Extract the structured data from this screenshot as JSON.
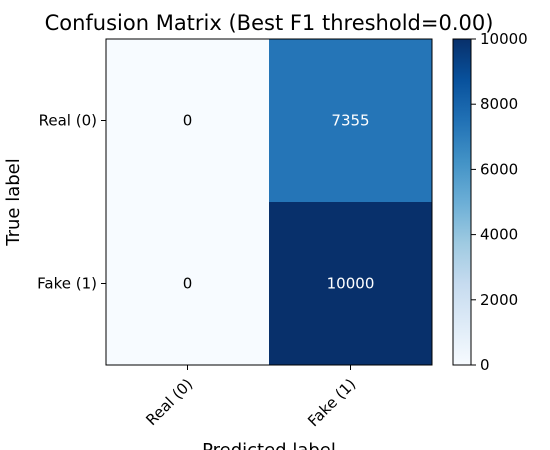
{
  "chart_data": {
    "type": "heatmap",
    "title": "Confusion Matrix (Best F1 threshold=0.00)",
    "xlabel": "Predicted label",
    "ylabel": "True label",
    "x_categories": [
      "Real (0)",
      "Fake (1)"
    ],
    "y_categories": [
      "Real (0)",
      "Fake (1)"
    ],
    "values": [
      [
        0,
        7355
      ],
      [
        0,
        10000
      ]
    ],
    "cell_labels": [
      [
        "0",
        "7355"
      ],
      [
        "0",
        "10000"
      ]
    ],
    "colorscale": "Blues",
    "color_min": "#f7fbff",
    "color_max": "#08306b",
    "colorbar": {
      "range": [
        0,
        10000
      ],
      "ticks": [
        0,
        2000,
        4000,
        6000,
        8000,
        10000
      ],
      "tick_labels": [
        "0",
        "2000",
        "4000",
        "6000",
        "8000",
        "10000"
      ]
    },
    "grid": false,
    "legend": "colorbar-right"
  }
}
